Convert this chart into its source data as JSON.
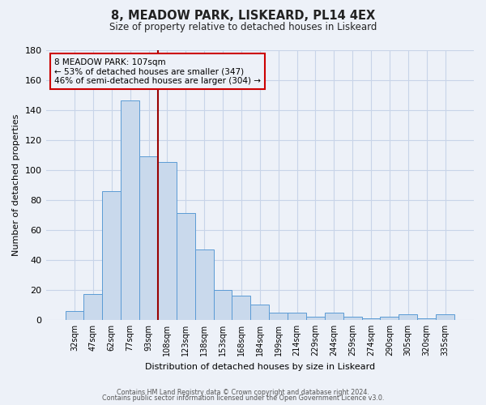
{
  "title": "8, MEADOW PARK, LISKEARD, PL14 4EX",
  "subtitle": "Size of property relative to detached houses in Liskeard",
  "xlabel": "Distribution of detached houses by size in Liskeard",
  "ylabel": "Number of detached properties",
  "bar_labels": [
    "32sqm",
    "47sqm",
    "62sqm",
    "77sqm",
    "93sqm",
    "108sqm",
    "123sqm",
    "138sqm",
    "153sqm",
    "168sqm",
    "184sqm",
    "199sqm",
    "214sqm",
    "229sqm",
    "244sqm",
    "259sqm",
    "274sqm",
    "290sqm",
    "305sqm",
    "320sqm",
    "335sqm"
  ],
  "bar_values": [
    6,
    17,
    86,
    146,
    109,
    105,
    71,
    47,
    20,
    16,
    10,
    5,
    5,
    2,
    5,
    2,
    1,
    2,
    4,
    1,
    4
  ],
  "bar_color": "#c9d9ec",
  "bar_edgecolor": "#5b9bd5",
  "marker_line_color": "#990000",
  "ylim": [
    0,
    180
  ],
  "yticks": [
    0,
    20,
    40,
    60,
    80,
    100,
    120,
    140,
    160,
    180
  ],
  "annotation_title": "8 MEADOW PARK: 107sqm",
  "annotation_line1": "← 53% of detached houses are smaller (347)",
  "annotation_line2": "46% of semi-detached houses are larger (304) →",
  "annotation_box_edgecolor": "#cc0000",
  "grid_color": "#c8d4e8",
  "bg_color": "#edf1f8",
  "footer1": "Contains HM Land Registry data © Crown copyright and database right 2024.",
  "footer2": "Contains public sector information licensed under the Open Government Licence v3.0."
}
